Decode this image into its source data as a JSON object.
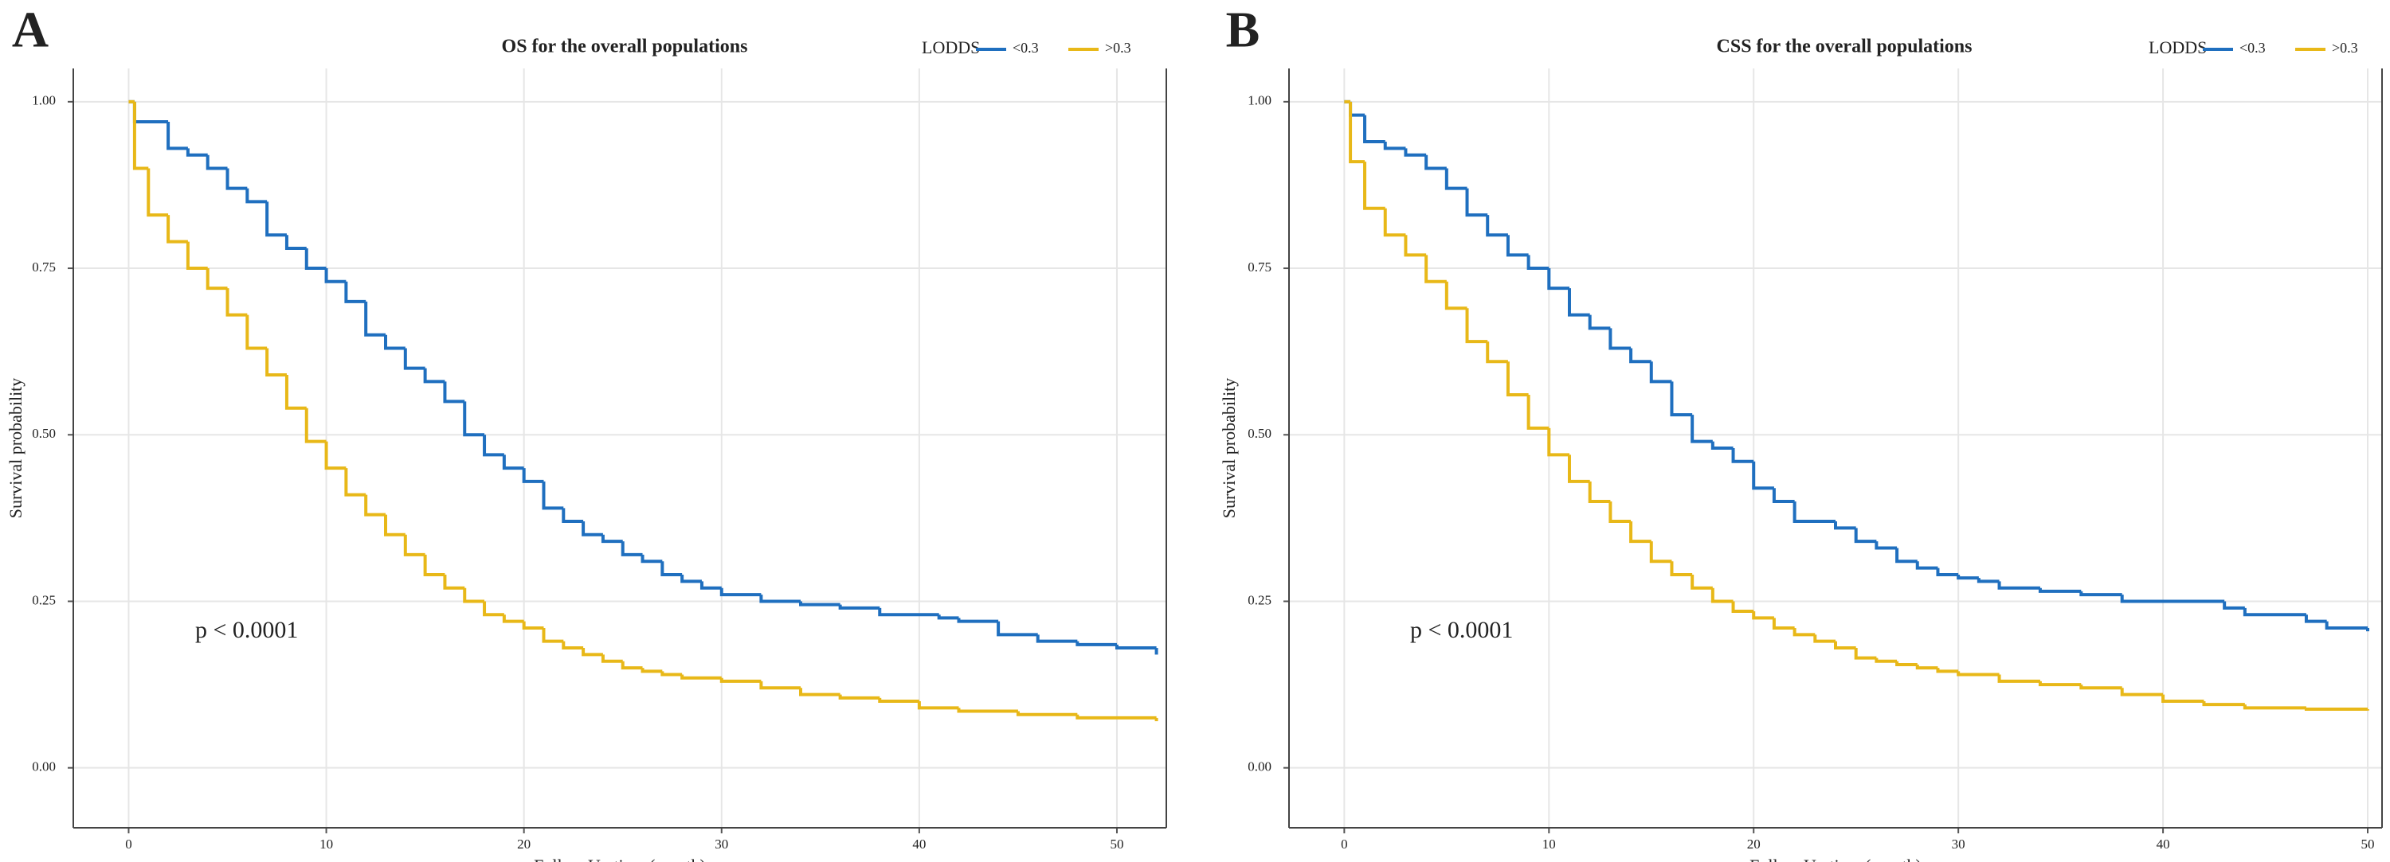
{
  "chart_data": [
    {
      "type": "line",
      "step": true,
      "panel_label": "A",
      "title": "OS for the overall populations",
      "legend_title": "LODDS",
      "annotation": "p < 0.0001",
      "xlabel": "Follow Up time (mouth)",
      "ylabel": "Survival probability",
      "xlim": [
        -2.8,
        52.5
      ],
      "ylim": [
        -0.09,
        1.05
      ],
      "xticks": [
        0,
        10,
        20,
        30,
        40,
        50
      ],
      "yticks": [
        {
          "value": 0,
          "label": "0.00"
        },
        {
          "value": 0.25,
          "label": "0.25"
        },
        {
          "value": 0.5,
          "label": "0.50"
        },
        {
          "value": 0.75,
          "label": "0.75"
        },
        {
          "value": 1,
          "label": "1.00"
        }
      ],
      "grid": true,
      "series": [
        {
          "name": "<0.3",
          "color": "#1f6fbf",
          "x": [
            0,
            0.3,
            2,
            3,
            4,
            5,
            6,
            7,
            8,
            9,
            10,
            11,
            12,
            13,
            14,
            15,
            16,
            17,
            18,
            19,
            20,
            21,
            22,
            23,
            24,
            25,
            26,
            27,
            28,
            29,
            30,
            32,
            34,
            36,
            38,
            41,
            42,
            44,
            46,
            48,
            50,
            52
          ],
          "values": [
            1.0,
            0.97,
            0.93,
            0.92,
            0.9,
            0.87,
            0.85,
            0.8,
            0.78,
            0.75,
            0.73,
            0.7,
            0.65,
            0.63,
            0.6,
            0.58,
            0.55,
            0.5,
            0.47,
            0.45,
            0.43,
            0.39,
            0.37,
            0.35,
            0.34,
            0.32,
            0.31,
            0.29,
            0.28,
            0.27,
            0.26,
            0.25,
            0.245,
            0.24,
            0.23,
            0.225,
            0.22,
            0.2,
            0.19,
            0.185,
            0.18,
            0.17
          ]
        },
        {
          "name": ">0.3",
          "color": "#e8b818",
          "x": [
            0,
            0.3,
            1,
            2,
            3,
            4,
            5,
            6,
            7,
            8,
            9,
            10,
            11,
            12,
            13,
            14,
            15,
            16,
            17,
            18,
            19,
            20,
            21,
            22,
            23,
            24,
            25,
            26,
            27,
            28,
            30,
            32,
            34,
            36,
            38,
            40,
            42,
            45,
            48,
            52
          ],
          "values": [
            1.0,
            0.9,
            0.83,
            0.79,
            0.75,
            0.72,
            0.68,
            0.63,
            0.59,
            0.54,
            0.49,
            0.45,
            0.41,
            0.38,
            0.35,
            0.32,
            0.29,
            0.27,
            0.25,
            0.23,
            0.22,
            0.21,
            0.19,
            0.18,
            0.17,
            0.16,
            0.15,
            0.145,
            0.14,
            0.135,
            0.13,
            0.12,
            0.11,
            0.105,
            0.1,
            0.09,
            0.085,
            0.08,
            0.075,
            0.07
          ]
        }
      ]
    },
    {
      "type": "line",
      "step": true,
      "panel_label": "B",
      "title": "CSS for the overall populations",
      "legend_title": "LODDS",
      "annotation": "p < 0.0001",
      "xlabel": "Follow Up time (mouth)",
      "ylabel": "Survival probability",
      "xlim": [
        -2.7,
        50.7
      ],
      "ylim": [
        -0.09,
        1.05
      ],
      "xticks": [
        0,
        10,
        20,
        30,
        40,
        50
      ],
      "yticks": [
        {
          "value": 0,
          "label": "0.00"
        },
        {
          "value": 0.25,
          "label": "0.25"
        },
        {
          "value": 0.5,
          "label": "0.50"
        },
        {
          "value": 0.75,
          "label": "0.75"
        },
        {
          "value": 1,
          "label": "1.00"
        }
      ],
      "grid": true,
      "series": [
        {
          "name": "<0.3",
          "color": "#1f6fbf",
          "x": [
            0,
            0.3,
            1,
            2,
            3,
            4,
            5,
            6,
            7,
            8,
            9,
            10,
            11,
            12,
            13,
            14,
            15,
            16,
            17,
            18,
            19,
            20,
            21,
            22,
            24,
            25,
            26,
            27,
            28,
            29,
            30,
            31,
            32,
            34,
            36,
            38,
            43,
            44,
            47,
            48,
            50
          ],
          "values": [
            1.0,
            0.98,
            0.94,
            0.93,
            0.92,
            0.9,
            0.87,
            0.83,
            0.8,
            0.77,
            0.75,
            0.72,
            0.68,
            0.66,
            0.63,
            0.61,
            0.58,
            0.53,
            0.49,
            0.48,
            0.46,
            0.42,
            0.4,
            0.37,
            0.36,
            0.34,
            0.33,
            0.31,
            0.3,
            0.29,
            0.285,
            0.28,
            0.27,
            0.265,
            0.26,
            0.25,
            0.24,
            0.23,
            0.22,
            0.21,
            0.205
          ]
        },
        {
          "name": ">0.3",
          "color": "#e8b818",
          "x": [
            0,
            0.3,
            1,
            2,
            3,
            4,
            5,
            6,
            7,
            8,
            9,
            10,
            11,
            12,
            13,
            14,
            15,
            16,
            17,
            18,
            19,
            20,
            21,
            22,
            23,
            24,
            25,
            26,
            27,
            28,
            29,
            30,
            32,
            34,
            36,
            38,
            40,
            42,
            44,
            47,
            50
          ],
          "values": [
            1.0,
            0.91,
            0.84,
            0.8,
            0.77,
            0.73,
            0.69,
            0.64,
            0.61,
            0.56,
            0.51,
            0.47,
            0.43,
            0.4,
            0.37,
            0.34,
            0.31,
            0.29,
            0.27,
            0.25,
            0.235,
            0.225,
            0.21,
            0.2,
            0.19,
            0.18,
            0.165,
            0.16,
            0.155,
            0.15,
            0.145,
            0.14,
            0.13,
            0.125,
            0.12,
            0.11,
            0.1,
            0.095,
            0.09,
            0.088,
            0.086
          ]
        }
      ]
    }
  ]
}
